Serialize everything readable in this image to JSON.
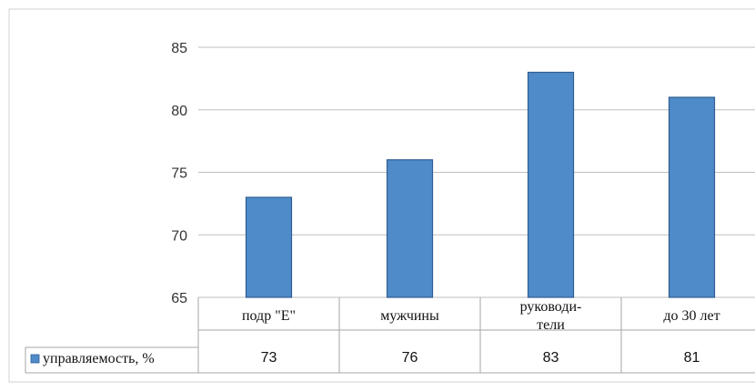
{
  "chart_data": {
    "type": "bar",
    "categories": [
      "подр \"Е\"",
      "мужчины",
      [
        "руководи-",
        "тели"
      ],
      "до 30 лет"
    ],
    "series": [
      {
        "name": "управляемость, %",
        "values": [
          73,
          76,
          83,
          81
        ]
      }
    ],
    "value_labels": [
      "73",
      "76",
      "83",
      "81"
    ],
    "y_ticks": [
      65,
      70,
      75,
      80,
      85
    ],
    "ylim": [
      65,
      85
    ],
    "grid": true,
    "legend": "bottom-left (data table)",
    "colors": {
      "bar_fill": "#4F8BC9",
      "bar_stroke": "#2F5E92",
      "grid": "#BFBFBF",
      "table_border": "#A6A6A6",
      "frame": "#D0D0D0"
    }
  }
}
